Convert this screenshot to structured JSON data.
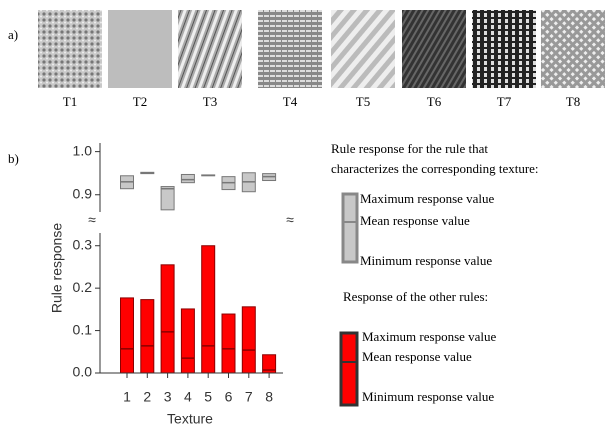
{
  "panel_labels": [
    "a)",
    "b)"
  ],
  "textures": [
    "T1",
    "T2",
    "T3",
    "T4",
    "T5",
    "T6",
    "T7",
    "T8"
  ],
  "break_mark": "≈",
  "chart_data": [
    {
      "type": "range",
      "ylim": [
        0.86,
        1.02
      ],
      "yticks": [
        0.9,
        {
          "value": 1,
          "label": "1.0"
        }
      ],
      "series": [
        {
          "color": "#c8c8c8",
          "edge": "#777777",
          "max": [
            0.944,
            0.952,
            0.919,
            0.947,
            0.946,
            0.942,
            0.951,
            0.949
          ],
          "mean": [
            0.93,
            0.951,
            0.914,
            0.935,
            0.945,
            0.928,
            0.93,
            0.942
          ],
          "min": [
            0.914,
            0.949,
            0.865,
            0.928,
            0.944,
            0.912,
            0.907,
            0.933
          ]
        }
      ]
    },
    {
      "type": "range",
      "ylabel": "Rule response",
      "xlabel": "Texture",
      "categories": [
        "1",
        "2",
        "3",
        "4",
        "5",
        "6",
        "7",
        "8"
      ],
      "ylim": [
        0,
        0.33
      ],
      "yticks": [
        {
          "value": 0,
          "label": "0.0"
        },
        0.1,
        0.2,
        0.3
      ],
      "series": [
        {
          "color": "#ff0000",
          "edge": "#8b0000",
          "max": [
            0.177,
            0.173,
            0.255,
            0.151,
            0.3,
            0.139,
            0.156,
            0.043
          ],
          "mean": [
            0.057,
            0.064,
            0.097,
            0.035,
            0.064,
            0.057,
            0.054,
            0.007
          ],
          "min": [
            0,
            0,
            0,
            0,
            0,
            0,
            0,
            0
          ]
        }
      ]
    }
  ],
  "legend": {
    "own_rule_heading": [
      "Rule response for the rule that",
      "characterizes the corresponding texture:"
    ],
    "own_rule_labels": [
      "Maximum response value",
      "Mean response value",
      "Minimum response value"
    ],
    "other_rules_heading": "Response of the other rules:",
    "other_rules_labels": [
      "Maximum response value",
      "Mean response value",
      "Minimum response value"
    ]
  }
}
